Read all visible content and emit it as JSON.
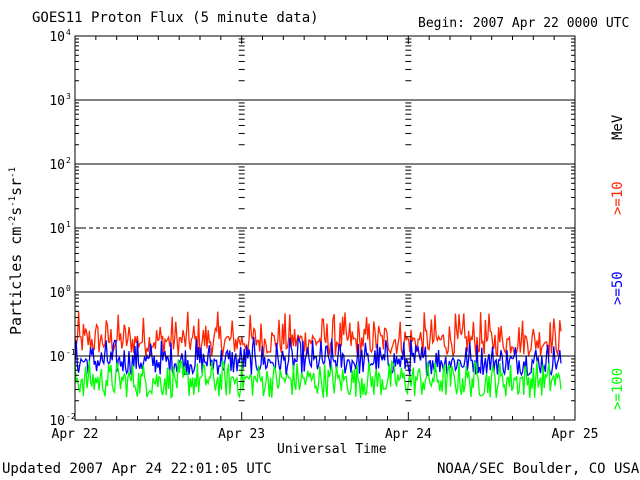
{
  "header": {
    "title": "GOES11 Proton Flux (5 minute data)",
    "begin": "Begin: 2007 Apr 22 0000 UTC"
  },
  "footer": {
    "updated": "Updated 2007 Apr 24 22:01:05 UTC",
    "credit": "NOAA/SEC Boulder, CO USA"
  },
  "chart_data": {
    "type": "line",
    "title": "GOES11 Proton Flux (5 minute data)",
    "xlabel": "Universal Time",
    "ylabel": "Particles cm-2s-1sr-1",
    "yscale": "log",
    "xlim": [
      "2007-04-22 00:00",
      "2007-04-25 00:00"
    ],
    "ylim": [
      0.01,
      10000
    ],
    "x_ticks": [
      "Apr 22",
      "Apr 23",
      "Apr 24",
      "Apr 25"
    ],
    "y_ticks": [
      {
        "base": "10",
        "exp": "-2",
        "value": 0.01
      },
      {
        "base": "10",
        "exp": "-1",
        "value": 0.1
      },
      {
        "base": "10",
        "exp": "0",
        "value": 1
      },
      {
        "base": "10",
        "exp": "1",
        "value": 10
      },
      {
        "base": "10",
        "exp": "2",
        "value": 100
      },
      {
        "base": "10",
        "exp": "3",
        "value": 1000
      },
      {
        "base": "10",
        "exp": "4",
        "value": 10000
      }
    ],
    "reference_lines": [
      {
        "value": 0.1,
        "style": "solid"
      },
      {
        "value": 1,
        "style": "solid"
      },
      {
        "value": 10,
        "style": "dashed"
      },
      {
        "value": 100,
        "style": "solid"
      },
      {
        "value": 1000,
        "style": "solid"
      }
    ],
    "unit_label": "MeV",
    "series": [
      {
        "name": ">=10",
        "color": "#ff2400",
        "typical": 0.18,
        "range": [
          0.1,
          0.5
        ]
      },
      {
        "name": ">=50",
        "color": "#0000ff",
        "typical": 0.085,
        "range": [
          0.05,
          0.2
        ]
      },
      {
        "name": ">=100",
        "color": "#00ff00",
        "typical": 0.045,
        "range": [
          0.022,
          0.09
        ]
      }
    ],
    "end_of_data": "2007-04-24 22:00",
    "grid": false
  }
}
